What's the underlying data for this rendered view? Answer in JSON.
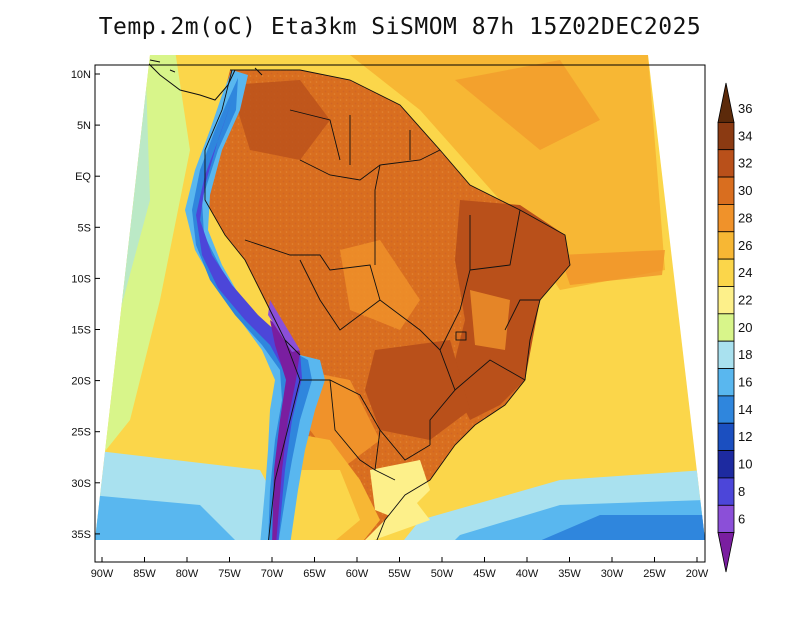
{
  "title": "Temp.2m(oC) Eta3km SiSMOM 87h 15Z02DEC2025",
  "lat_labels": [
    "10N",
    "5N",
    "EQ",
    "5S",
    "10S",
    "15S",
    "20S",
    "25S",
    "30S",
    "35S"
  ],
  "lon_labels": [
    "90W",
    "85W",
    "80W",
    "75W",
    "70W",
    "65W",
    "60W",
    "55W",
    "50W",
    "45W",
    "40W",
    "35W",
    "30W",
    "25W",
    "20W"
  ],
  "colorbar": {
    "labels": [
      "36",
      "34",
      "32",
      "30",
      "28",
      "26",
      "24",
      "22",
      "20",
      "18",
      "16",
      "14",
      "12",
      "10",
      "8",
      "6"
    ],
    "colors": [
      "#5c2a0a",
      "#8b3a12",
      "#b9501a",
      "#d96e1f",
      "#f0922a",
      "#f7b734",
      "#fbd64a",
      "#fdf08a",
      "#d8f58a",
      "#a9e1ef",
      "#59b7ef",
      "#2f86dd",
      "#1b4fc0",
      "#1d2aa0",
      "#4c46d9",
      "#8b4fd8",
      "#7a1ea0"
    ],
    "unit": "oC"
  }
}
